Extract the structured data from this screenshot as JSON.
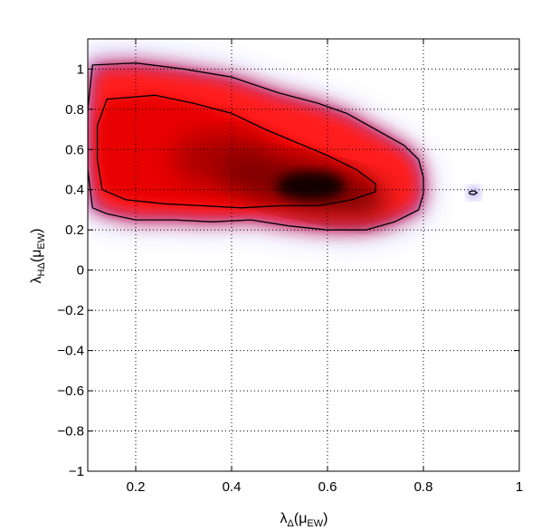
{
  "chart_data": {
    "type": "heatmap",
    "title": "",
    "xlabel": {
      "base": "λ",
      "sub": "Δ",
      "paren_open": "(μ",
      "paren_sub": "EW",
      "paren_close": ")"
    },
    "ylabel": {
      "base": "λ",
      "sub": "HΔ",
      "paren_open": "(μ",
      "paren_sub": "EW",
      "paren_close": ")"
    },
    "xlim": [
      0.1,
      1
    ],
    "ylim": [
      -1,
      1.15
    ],
    "xticks": [
      0.2,
      0.4,
      0.6,
      0.8,
      1
    ],
    "xtick_labels": [
      "0.2",
      "0.4",
      "0.6",
      "0.8",
      "1"
    ],
    "yticks": [
      -1,
      -0.8,
      -0.6,
      -0.4,
      -0.2,
      0,
      0.2,
      0.4,
      0.6,
      0.8,
      1
    ],
    "ytick_labels": [
      "−1",
      "−0.8",
      "−0.6",
      "−0.4",
      "−0.2",
      "0",
      "0.2",
      "0.4",
      "0.6",
      "0.8",
      "1"
    ],
    "grid": true,
    "colormap": {
      "low": "#c8c8ff",
      "mid_low": "#6a5cff",
      "mid": "#ff1a1a",
      "high": "#000000"
    },
    "density_peak": {
      "x": 0.55,
      "y": 0.42
    },
    "contours": [
      {
        "level": "outer",
        "points": [
          [
            0.11,
            1.02
          ],
          [
            0.2,
            1.03
          ],
          [
            0.3,
            1.0
          ],
          [
            0.4,
            0.96
          ],
          [
            0.5,
            0.88
          ],
          [
            0.58,
            0.83
          ],
          [
            0.64,
            0.78
          ],
          [
            0.7,
            0.7
          ],
          [
            0.76,
            0.62
          ],
          [
            0.79,
            0.55
          ],
          [
            0.8,
            0.46
          ],
          [
            0.8,
            0.38
          ],
          [
            0.79,
            0.3
          ],
          [
            0.74,
            0.24
          ],
          [
            0.68,
            0.2
          ],
          [
            0.6,
            0.2
          ],
          [
            0.52,
            0.22
          ],
          [
            0.44,
            0.25
          ],
          [
            0.36,
            0.24
          ],
          [
            0.28,
            0.25
          ],
          [
            0.2,
            0.25
          ],
          [
            0.14,
            0.28
          ],
          [
            0.11,
            0.31
          ],
          [
            0.1,
            0.5
          ],
          [
            0.1,
            0.8
          ],
          [
            0.11,
            1.02
          ]
        ]
      },
      {
        "level": "inner",
        "points": [
          [
            0.14,
            0.85
          ],
          [
            0.24,
            0.87
          ],
          [
            0.32,
            0.83
          ],
          [
            0.4,
            0.78
          ],
          [
            0.47,
            0.7
          ],
          [
            0.53,
            0.64
          ],
          [
            0.6,
            0.57
          ],
          [
            0.66,
            0.5
          ],
          [
            0.7,
            0.43
          ],
          [
            0.7,
            0.39
          ],
          [
            0.65,
            0.35
          ],
          [
            0.58,
            0.32
          ],
          [
            0.5,
            0.32
          ],
          [
            0.42,
            0.31
          ],
          [
            0.34,
            0.32
          ],
          [
            0.26,
            0.33
          ],
          [
            0.18,
            0.35
          ],
          [
            0.13,
            0.4
          ],
          [
            0.12,
            0.55
          ],
          [
            0.12,
            0.72
          ],
          [
            0.14,
            0.85
          ]
        ]
      },
      {
        "level": "islet",
        "points": [
          [
            0.896,
            0.39
          ],
          [
            0.905,
            0.395
          ],
          [
            0.912,
            0.385
          ],
          [
            0.905,
            0.375
          ],
          [
            0.896,
            0.38
          ],
          [
            0.896,
            0.39
          ]
        ]
      }
    ]
  }
}
